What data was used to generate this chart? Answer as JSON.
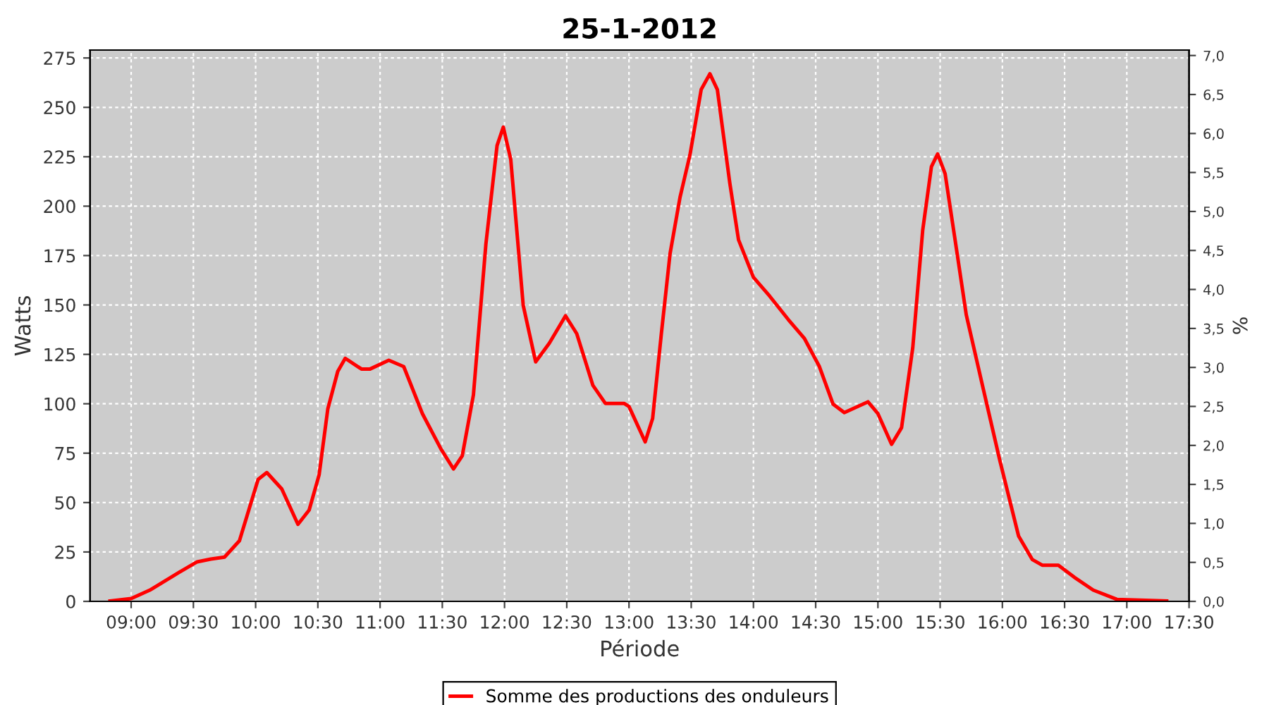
{
  "chart_data": {
    "type": "line",
    "title": "25-1-2012",
    "xlabel": "Période",
    "ylabel": "Watts",
    "y2label": "%",
    "xlim": [
      8.67,
      17.5
    ],
    "xticks": [
      {
        "value": 9,
        "label": "09:00"
      },
      {
        "value": 9.5,
        "label": "09:30"
      },
      {
        "value": 10,
        "label": "10:00"
      },
      {
        "value": 10.5,
        "label": "10:30"
      },
      {
        "value": 11,
        "label": "11:00"
      },
      {
        "value": 11.5,
        "label": "11:30"
      },
      {
        "value": 12,
        "label": "12:00"
      },
      {
        "value": 12.5,
        "label": "12:30"
      },
      {
        "value": 13,
        "label": "13:00"
      },
      {
        "value": 13.5,
        "label": "13:30"
      },
      {
        "value": 14,
        "label": "14:00"
      },
      {
        "value": 14.5,
        "label": "14:30"
      },
      {
        "value": 15,
        "label": "15:00"
      },
      {
        "value": 15.5,
        "label": "15:30"
      },
      {
        "value": 16,
        "label": "16:00"
      },
      {
        "value": 16.5,
        "label": "16:30"
      },
      {
        "value": 17,
        "label": "17:00"
      },
      {
        "value": 17.5,
        "label": "17:30"
      }
    ],
    "ylim": [
      0,
      279
    ],
    "yticks": [
      0,
      25,
      50,
      75,
      100,
      125,
      150,
      175,
      200,
      225,
      250,
      275
    ],
    "y2lim": [
      0,
      7.07
    ],
    "y2ticks": [
      {
        "value": 0,
        "label": "0,0"
      },
      {
        "value": 0.5,
        "label": "0,5"
      },
      {
        "value": 1,
        "label": "1,0"
      },
      {
        "value": 1.5,
        "label": "1,5"
      },
      {
        "value": 2,
        "label": "2,0"
      },
      {
        "value": 2.5,
        "label": "2,5"
      },
      {
        "value": 3,
        "label": "3,0"
      },
      {
        "value": 3.5,
        "label": "3,5"
      },
      {
        "value": 4,
        "label": "4,0"
      },
      {
        "value": 4.5,
        "label": "4,5"
      },
      {
        "value": 5,
        "label": "5,0"
      },
      {
        "value": 5.5,
        "label": "5,5"
      },
      {
        "value": 6,
        "label": "6,0"
      },
      {
        "value": 6.5,
        "label": "6,5"
      },
      {
        "value": 7,
        "label": "7,0"
      }
    ],
    "grid": true,
    "legend": "bottom",
    "marker": "none",
    "line_style": "solid",
    "series": [
      {
        "name": "Somme des productions des onduleurs",
        "color": "#ff0000",
        "x": [
          8.83,
          9.0,
          9.15,
          9.38,
          9.53,
          9.64,
          9.75,
          9.87,
          10.02,
          10.09,
          10.21,
          10.34,
          10.43,
          10.51,
          10.58,
          10.66,
          10.72,
          10.85,
          10.92,
          11.07,
          11.19,
          11.34,
          11.49,
          11.59,
          11.66,
          11.75,
          11.85,
          11.94,
          11.99,
          12.05,
          12.15,
          12.25,
          12.36,
          12.49,
          12.58,
          12.71,
          12.81,
          12.96,
          13.0,
          13.13,
          13.19,
          13.26,
          13.33,
          13.41,
          13.49,
          13.58,
          13.65,
          13.71,
          13.81,
          13.88,
          14.0,
          14.13,
          14.28,
          14.41,
          14.53,
          14.64,
          14.73,
          14.92,
          15.0,
          15.11,
          15.19,
          15.28,
          15.36,
          15.43,
          15.48,
          15.54,
          15.62,
          15.71,
          15.84,
          15.98,
          16.13,
          16.24,
          16.32,
          16.45,
          16.58,
          16.73,
          16.92,
          17.32
        ],
        "values": [
          0.2,
          1.4,
          5.7,
          14.5,
          20,
          21.4,
          22.4,
          30.7,
          61.7,
          65.2,
          56.9,
          39,
          46.2,
          64,
          97.4,
          116.4,
          123,
          117.6,
          117.6,
          122,
          118.8,
          95,
          77,
          67,
          73.6,
          104.5,
          180.7,
          230.7,
          240,
          223.6,
          149.8,
          121.2,
          130.7,
          144.5,
          135.5,
          109.3,
          100.2,
          100.2,
          98.6,
          80.7,
          92.6,
          135.5,
          176,
          204.5,
          226,
          259,
          267,
          259,
          211.7,
          183,
          164,
          154.5,
          142.6,
          133,
          118.8,
          99.8,
          95.5,
          101,
          95,
          79.5,
          87.9,
          128.3,
          187.9,
          220,
          226.4,
          216.4,
          183,
          145,
          109.3,
          71.2,
          33.1,
          21.2,
          18.3,
          18.3,
          12.1,
          5.7,
          1,
          0.2
        ]
      }
    ]
  }
}
